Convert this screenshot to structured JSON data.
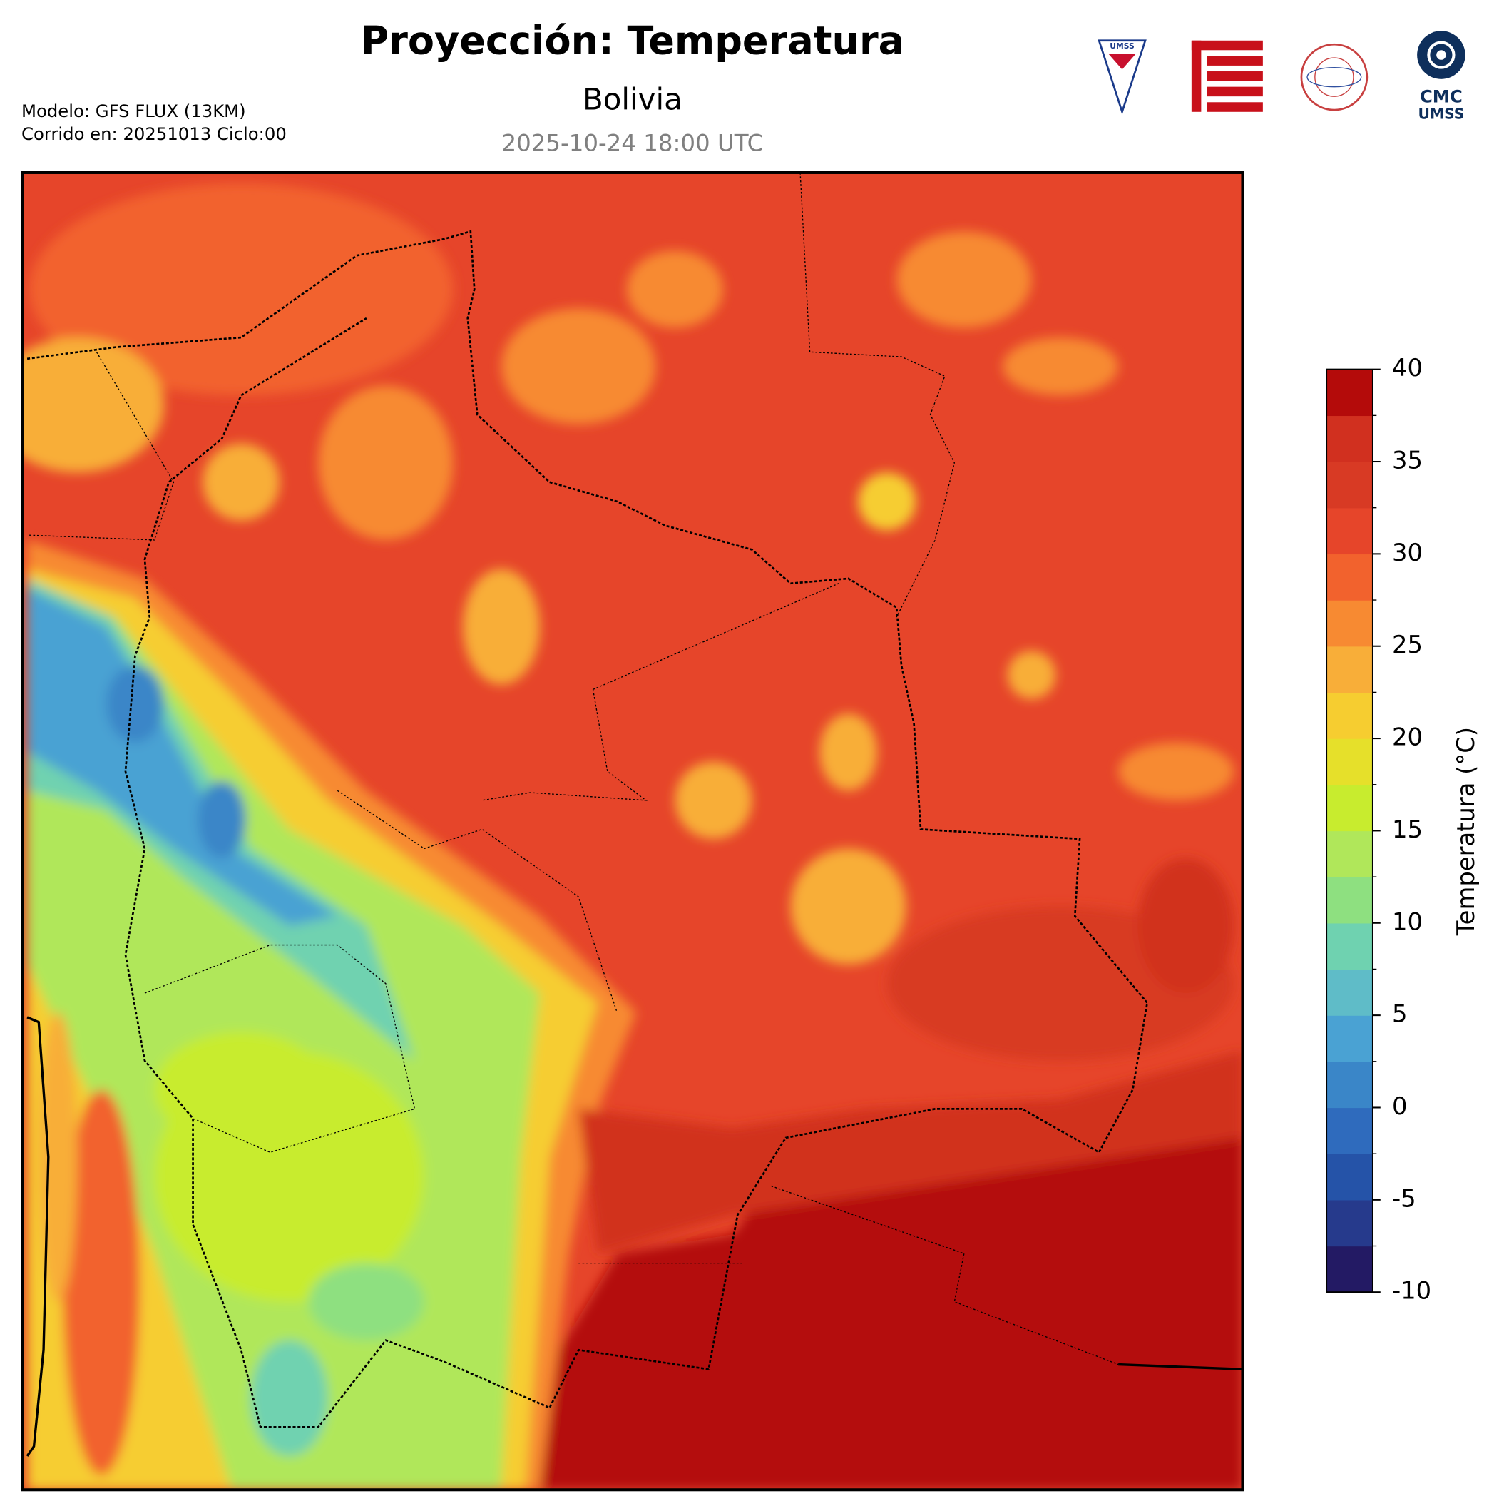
{
  "header": {
    "title": "Proyección: Temperatura",
    "subtitle": "Bolivia",
    "date": "2025-10-24 18:00 UTC",
    "model": "Modelo: GFS FLUX (13KM)",
    "run": "Corrido en: 20251013 Ciclo:00"
  },
  "logos": {
    "umss": "UMSS",
    "cmc": "CMC",
    "cmc_sub": "UMSS"
  },
  "colorbar": {
    "label": "Temperatura (°C)",
    "lim": [
      -10,
      40
    ],
    "ticks": [
      -10,
      -5,
      0,
      5,
      10,
      15,
      20,
      25,
      30,
      35,
      40
    ],
    "colors": [
      "#231a64",
      "#263a8c",
      "#2553a8",
      "#2f6bbd",
      "#3a86c8",
      "#4aa2d3",
      "#5fbcc8",
      "#6fd2b0",
      "#8ee080",
      "#b0e75a",
      "#c8ec2e",
      "#e6e02a",
      "#f6cd30",
      "#f8ae39",
      "#f78a32",
      "#f2622d",
      "#e6452a",
      "#d83a24",
      "#d1301f",
      "#b40b0a"
    ]
  }
}
